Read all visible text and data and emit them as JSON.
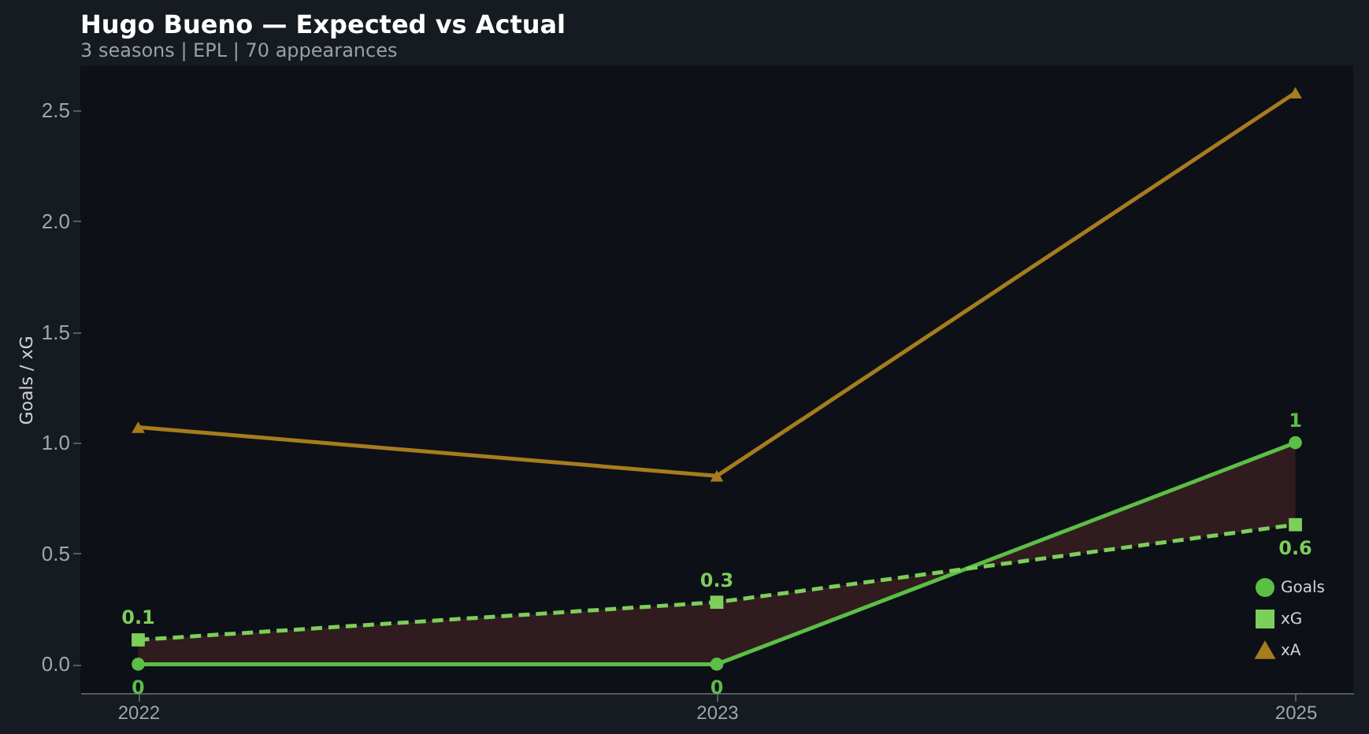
{
  "chart_data": {
    "type": "line",
    "title": "Hugo Bueno — Expected vs Actual",
    "subtitle": "3 seasons | EPL | 70 appearances",
    "ylabel": "Goals / xG",
    "categories": [
      "2022",
      "2023",
      "2025"
    ],
    "ylim": [
      -0.13,
      2.7
    ],
    "yticks": [
      {
        "value": 0,
        "label": "0.0"
      },
      0.5,
      {
        "value": 1,
        "label": "1.0"
      },
      1.5,
      {
        "value": 2,
        "label": "2.0"
      },
      2.5
    ],
    "legend": "bottom right",
    "series": [
      {
        "name": "Goals",
        "color": "#5bbf45",
        "values": [
          0,
          0,
          1
        ],
        "marker": "circle",
        "line_style": "solid",
        "value_labels": [
          "0",
          "0",
          "1"
        ]
      },
      {
        "name": "xG",
        "color": "#7ccf5a",
        "values": [
          0.11,
          0.28,
          0.63
        ],
        "marker": "square",
        "line_style": "dashed",
        "value_labels": [
          "0.1",
          "0.3",
          "0.6"
        ],
        "lower": [
          0,
          0,
          1
        ],
        "upper": [
          0.11,
          0.28,
          0.63
        ]
      },
      {
        "name": "xA",
        "color": "#a67c1e",
        "values": [
          1.07,
          0.85,
          2.58
        ],
        "marker": "triangle",
        "line_style": "solid"
      }
    ]
  }
}
